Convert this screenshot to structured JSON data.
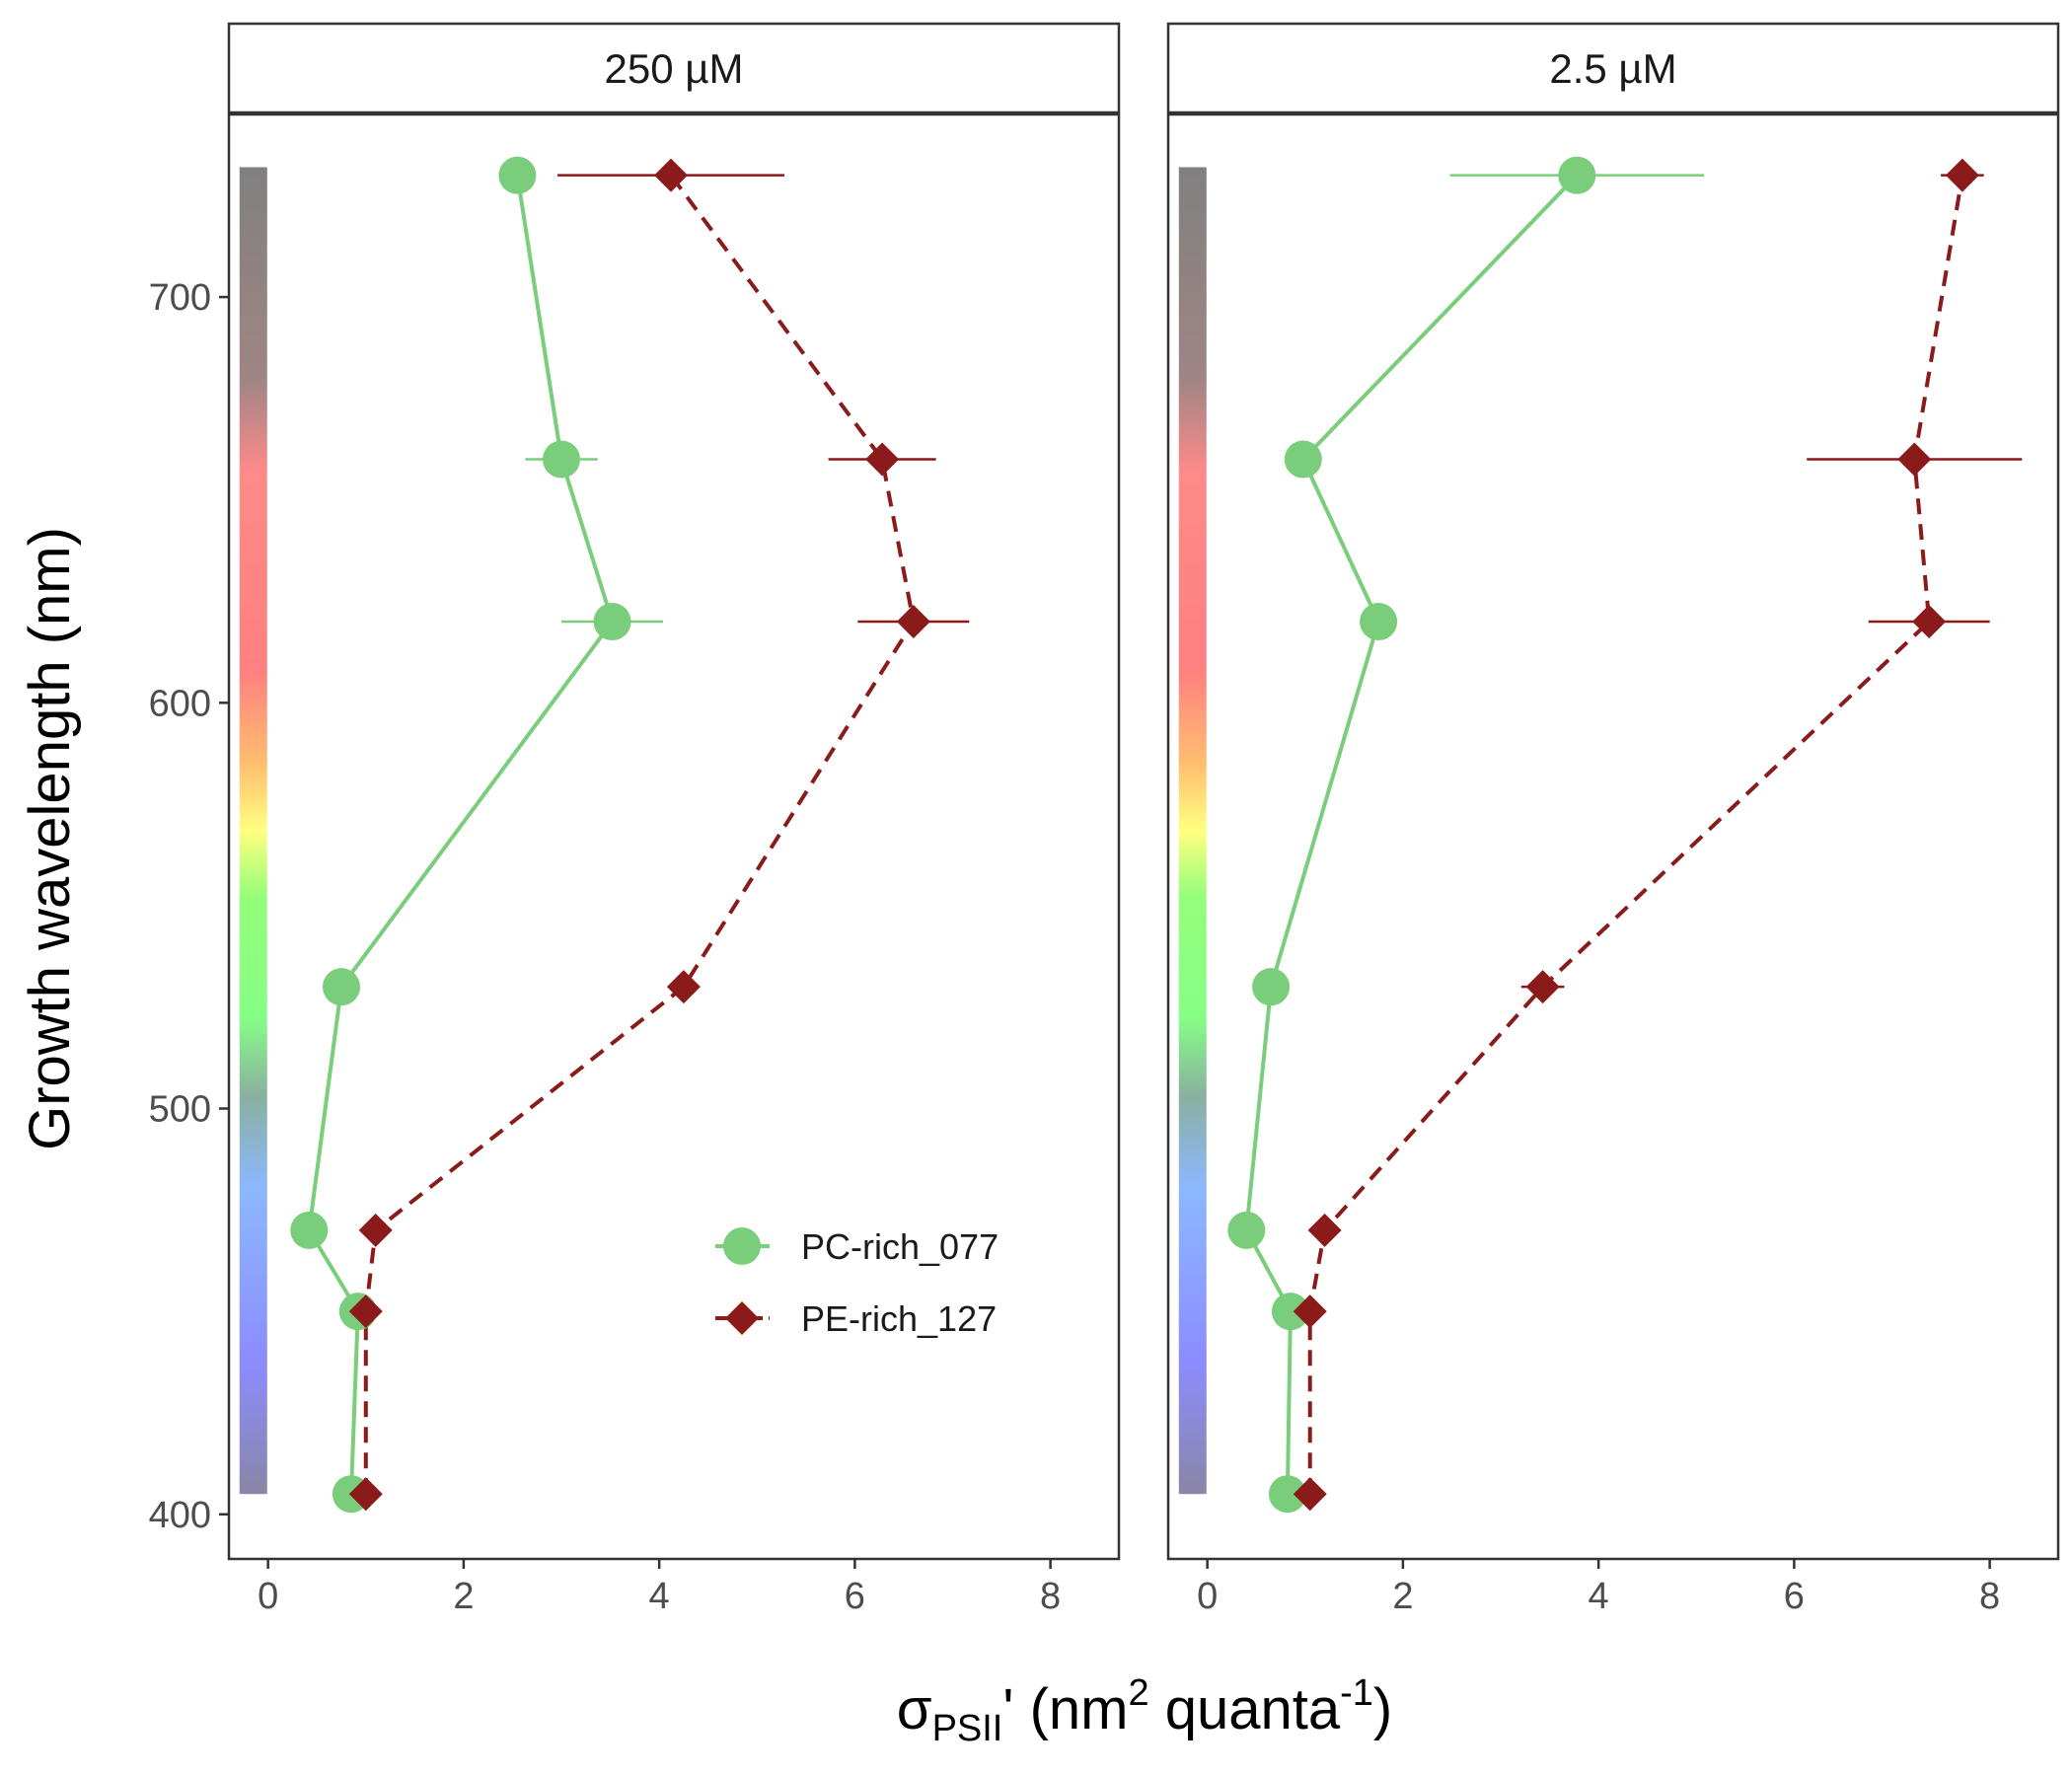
{
  "chart_data": {
    "type": "scatter",
    "xlabel": {
      "main": "σ",
      "sub": "PSII",
      "prime": "' (nm",
      "sup1": "2",
      "mid": " quanta",
      "sup2": "-1",
      "end": ")"
    },
    "ylabel": "Growth wavelength (nm)",
    "xlim": [
      -0.4,
      8.7
    ],
    "ylim": [
      389,
      745
    ],
    "xticks": [
      0,
      2,
      4,
      6,
      8
    ],
    "yticks": [
      400,
      500,
      600,
      700
    ],
    "grid": false,
    "legend_position": "bottom-right of left panel",
    "wavelengths": [
      405,
      450,
      470,
      530,
      620,
      660,
      730
    ],
    "colors": {
      "pc": "#7acd7a",
      "pe": "#8b1a1a"
    },
    "panels": [
      {
        "label": "250 µM",
        "series": [
          {
            "name": "PC-rich_077",
            "x": [
              0.85,
              0.92,
              0.42,
              0.75,
              3.52,
              3.0,
              2.55
            ],
            "xerr": [
              0.05,
              0.05,
              0.05,
              0.05,
              0.52,
              0.37,
              0.12
            ]
          },
          {
            "name": "PE-rich_127",
            "x": [
              1.0,
              1.0,
              1.1,
              4.25,
              6.6,
              6.28,
              4.12
            ],
            "xerr": [
              0.05,
              0.05,
              0.05,
              0.05,
              0.57,
              0.55,
              1.16
            ]
          }
        ]
      },
      {
        "label": "2.5 µM",
        "series": [
          {
            "name": "PC-rich_077",
            "x": [
              0.82,
              0.85,
              0.4,
              0.65,
              1.75,
              0.98,
              3.78
            ],
            "xerr": [
              0.05,
              0.05,
              0.05,
              0.05,
              0.05,
              0.05,
              1.3
            ]
          },
          {
            "name": "PE-rich_127",
            "x": [
              1.05,
              1.05,
              1.2,
              3.43,
              7.38,
              7.23,
              7.72
            ],
            "xerr": [
              0.05,
              0.1,
              0.05,
              0.22,
              0.62,
              1.1,
              0.22
            ]
          }
        ]
      }
    ],
    "legend": [
      "PC-rich_077",
      "PE-rich_127"
    ]
  }
}
